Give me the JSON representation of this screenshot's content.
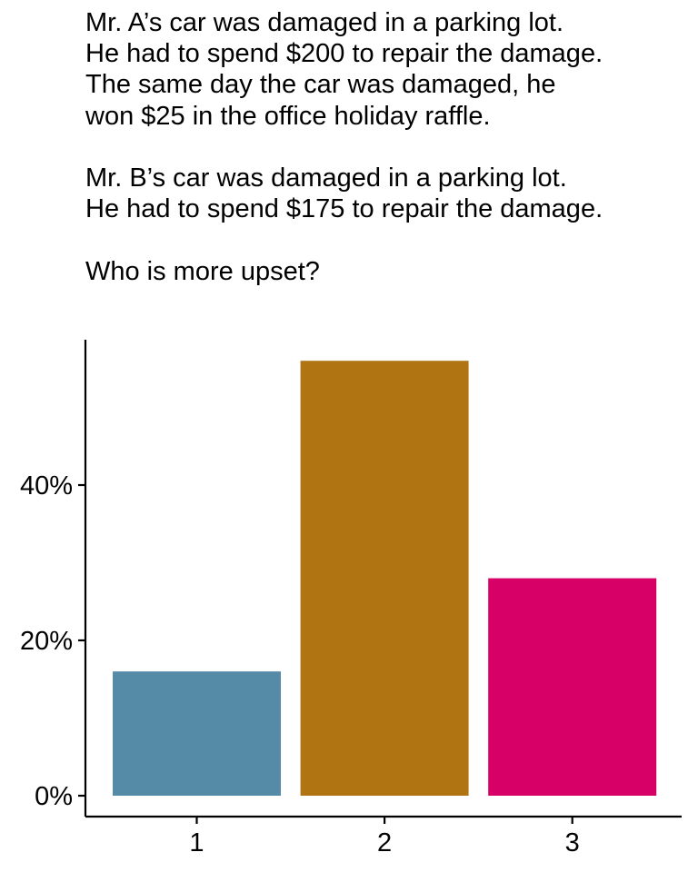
{
  "question": {
    "lines": [
      "Mr. A’s car was damaged in a parking lot.",
      "He had to spend $200 to repair the damage.",
      "The same day the car was damaged, he",
      "won $25 in the office holiday raffle.",
      "",
      "Mr. B’s car was damaged in a parking lot.",
      "He had to spend $175 to repair the damage.",
      "",
      "Who is more upset?"
    ]
  },
  "chart_data": {
    "type": "bar",
    "categories": [
      "1",
      "2",
      "3"
    ],
    "values": [
      16,
      56,
      28
    ],
    "colors": [
      "#568ba8",
      "#b07512",
      "#d60066"
    ],
    "ylim": [
      0,
      58.6
    ],
    "yticks": [
      0,
      20,
      40
    ],
    "ytick_labels": [
      "0%",
      "20%",
      "40%"
    ],
    "title": "",
    "xlabel": "",
    "ylabel": "",
    "grid": false,
    "legend": "none"
  }
}
